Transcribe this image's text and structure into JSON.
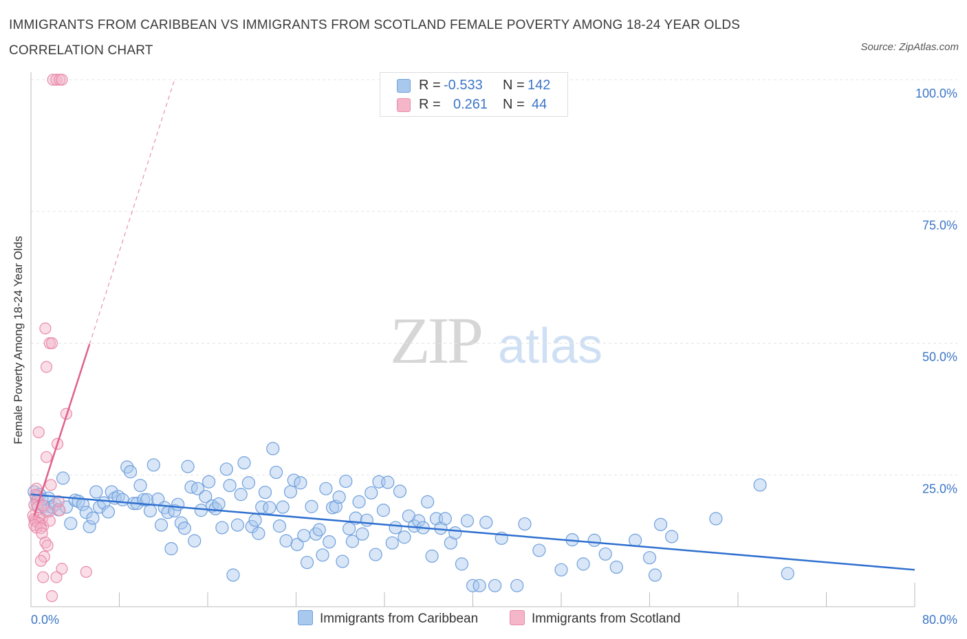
{
  "title": "IMMIGRANTS FROM CARIBBEAN VS IMMIGRANTS FROM SCOTLAND FEMALE POVERTY AMONG 18-24 YEAR OLDS CORRELATION CHART",
  "source": "Source: ZipAtlas.com",
  "watermark": {
    "zip": "ZIP",
    "atlas": "atlas"
  },
  "colors": {
    "blue_fill": "#a9c8ee",
    "blue_stroke": "#6f9fdb",
    "blue_line": "#2e6fcf",
    "pink_fill": "#f5b6c9",
    "pink_stroke": "#e88aa9",
    "pink_line": "#e0608c",
    "axis_text": "#3b75c6"
  },
  "legend": {
    "r_label": "R =",
    "n_label": "N =",
    "rows": [
      {
        "r": "-0.533",
        "n": "142"
      },
      {
        "r": "0.261",
        "n": "44"
      }
    ]
  },
  "chart_data": {
    "type": "scatter",
    "xlabel": "",
    "ylabel": "Female Poverty Among 18-24 Year Olds",
    "xlim": [
      0,
      80
    ],
    "ylim": [
      0,
      100
    ],
    "x_tick_labels": [
      "0.0%",
      "80.0%"
    ],
    "y_tick_values": [
      25,
      50,
      75,
      100
    ],
    "y_tick_labels": [
      "25.0%",
      "50.0%",
      "75.0%",
      "100.0%"
    ],
    "grid": true,
    "legend_position": "top-center",
    "series": [
      {
        "name": "Immigrants from Caribbean",
        "trend": {
          "x": [
            0,
            80
          ],
          "y": [
            21.3,
            7.0
          ]
        },
        "points": [
          [
            0.3,
            21.8
          ],
          [
            0.5,
            20.8
          ],
          [
            0.6,
            19.5
          ],
          [
            0.8,
            21.3
          ],
          [
            1.0,
            20.4
          ],
          [
            1.2,
            19.0
          ],
          [
            1.4,
            18.2
          ],
          [
            1.6,
            20.6
          ],
          [
            1.9,
            18.9
          ],
          [
            2.2,
            19.4
          ],
          [
            2.5,
            18.4
          ],
          [
            2.9,
            24.4
          ],
          [
            3.2,
            18.9
          ],
          [
            3.6,
            15.8
          ],
          [
            4.0,
            20.2
          ],
          [
            4.3,
            20.0
          ],
          [
            4.7,
            19.4
          ],
          [
            5.0,
            17.9
          ],
          [
            5.3,
            15.2
          ],
          [
            5.6,
            16.8
          ],
          [
            5.9,
            21.8
          ],
          [
            6.2,
            18.9
          ],
          [
            6.6,
            19.7
          ],
          [
            7.0,
            18.0
          ],
          [
            7.3,
            21.8
          ],
          [
            7.6,
            20.6
          ],
          [
            7.9,
            20.9
          ],
          [
            8.3,
            20.3
          ],
          [
            8.7,
            26.5
          ],
          [
            9.0,
            25.6
          ],
          [
            9.3,
            19.6
          ],
          [
            9.6,
            19.6
          ],
          [
            9.9,
            23.0
          ],
          [
            10.2,
            20.3
          ],
          [
            10.5,
            20.3
          ],
          [
            10.8,
            18.2
          ],
          [
            11.1,
            26.9
          ],
          [
            11.5,
            20.4
          ],
          [
            11.8,
            15.5
          ],
          [
            12.1,
            18.8
          ],
          [
            12.4,
            17.9
          ],
          [
            12.7,
            11.0
          ],
          [
            13.0,
            18.2
          ],
          [
            13.3,
            19.4
          ],
          [
            13.6,
            15.9
          ],
          [
            13.9,
            14.9
          ],
          [
            14.2,
            26.6
          ],
          [
            14.5,
            22.7
          ],
          [
            14.8,
            12.5
          ],
          [
            15.1,
            22.4
          ],
          [
            15.4,
            18.3
          ],
          [
            15.8,
            20.9
          ],
          [
            16.1,
            23.7
          ],
          [
            16.4,
            19.1
          ],
          [
            16.7,
            18.6
          ],
          [
            17.0,
            19.5
          ],
          [
            17.3,
            15.0
          ],
          [
            17.7,
            26.1
          ],
          [
            18.0,
            23.0
          ],
          [
            18.3,
            6.0
          ],
          [
            18.7,
            15.5
          ],
          [
            19.0,
            21.3
          ],
          [
            19.3,
            27.3
          ],
          [
            19.7,
            23.5
          ],
          [
            20.0,
            15.2
          ],
          [
            20.3,
            16.4
          ],
          [
            20.6,
            13.9
          ],
          [
            20.9,
            18.9
          ],
          [
            21.2,
            21.7
          ],
          [
            21.6,
            18.8
          ],
          [
            21.9,
            30.0
          ],
          [
            22.2,
            25.5
          ],
          [
            22.5,
            15.3
          ],
          [
            22.8,
            18.9
          ],
          [
            23.1,
            12.5
          ],
          [
            23.5,
            21.8
          ],
          [
            23.8,
            24.0
          ],
          [
            24.1,
            11.8
          ],
          [
            24.4,
            23.5
          ],
          [
            24.7,
            13.5
          ],
          [
            25.0,
            8.4
          ],
          [
            25.4,
            19.0
          ],
          [
            25.8,
            13.8
          ],
          [
            26.1,
            14.6
          ],
          [
            26.4,
            9.8
          ],
          [
            26.7,
            22.4
          ],
          [
            27.0,
            12.3
          ],
          [
            27.3,
            18.8
          ],
          [
            27.6,
            19.0
          ],
          [
            27.9,
            20.8
          ],
          [
            28.2,
            8.6
          ],
          [
            28.5,
            23.8
          ],
          [
            28.8,
            14.8
          ],
          [
            29.1,
            12.4
          ],
          [
            29.4,
            16.8
          ],
          [
            29.7,
            19.9
          ],
          [
            30.0,
            13.8
          ],
          [
            30.4,
            16.4
          ],
          [
            30.8,
            21.6
          ],
          [
            31.2,
            9.9
          ],
          [
            31.5,
            23.7
          ],
          [
            31.9,
            18.3
          ],
          [
            32.3,
            23.6
          ],
          [
            32.7,
            12.1
          ],
          [
            33.0,
            15.0
          ],
          [
            33.4,
            21.9
          ],
          [
            33.8,
            13.2
          ],
          [
            34.2,
            17.2
          ],
          [
            34.7,
            15.3
          ],
          [
            35.1,
            16.3
          ],
          [
            35.5,
            15.0
          ],
          [
            35.9,
            19.9
          ],
          [
            36.3,
            9.6
          ],
          [
            36.7,
            16.7
          ],
          [
            37.1,
            14.9
          ],
          [
            37.5,
            16.7
          ],
          [
            38.0,
            12.1
          ],
          [
            38.4,
            14.0
          ],
          [
            39.0,
            8.1
          ],
          [
            39.5,
            16.3
          ],
          [
            40.0,
            4.0
          ],
          [
            40.6,
            4.0
          ],
          [
            41.2,
            16.0
          ],
          [
            42.0,
            4.0
          ],
          [
            42.6,
            13.0
          ],
          [
            44.0,
            4.0
          ],
          [
            44.7,
            15.7
          ],
          [
            46.0,
            10.7
          ],
          [
            48.0,
            7.0
          ],
          [
            49.0,
            12.7
          ],
          [
            50.0,
            8.1
          ],
          [
            51.0,
            12.6
          ],
          [
            52.0,
            10.0
          ],
          [
            53.0,
            7.5
          ],
          [
            54.7,
            12.6
          ],
          [
            56.0,
            9.3
          ],
          [
            56.5,
            6.0
          ],
          [
            57.0,
            15.6
          ],
          [
            58.0,
            13.3
          ],
          [
            62.0,
            16.7
          ],
          [
            66.0,
            23.1
          ],
          [
            68.5,
            6.3
          ]
        ]
      },
      {
        "name": "Immigrants from Scotland",
        "trend": {
          "x": [
            0.3,
            5.3
          ],
          "y": [
            17.3,
            49.8
          ]
        },
        "trend_dashed": {
          "x": [
            5.3,
            13.0
          ],
          "y": [
            49.8,
            100
          ]
        },
        "points": [
          [
            2.0,
            100
          ],
          [
            2.3,
            100
          ],
          [
            2.6,
            100
          ],
          [
            2.8,
            100
          ],
          [
            1.3,
            52.8
          ],
          [
            1.7,
            50.0
          ],
          [
            1.9,
            50.0
          ],
          [
            1.4,
            45.5
          ],
          [
            3.2,
            36.6
          ],
          [
            0.7,
            33.1
          ],
          [
            2.4,
            30.9
          ],
          [
            1.4,
            28.4
          ],
          [
            0.5,
            22.4
          ],
          [
            1.8,
            23.1
          ],
          [
            0.4,
            21.2
          ],
          [
            0.6,
            20.3
          ],
          [
            0.3,
            19.3
          ],
          [
            2.6,
            18.3
          ],
          [
            1.6,
            18.0
          ],
          [
            0.2,
            17.3
          ],
          [
            0.3,
            16.6
          ],
          [
            0.7,
            16.9
          ],
          [
            1.0,
            16.6
          ],
          [
            0.4,
            16.2
          ],
          [
            0.6,
            16.0
          ],
          [
            0.8,
            15.8
          ],
          [
            0.3,
            15.5
          ],
          [
            1.1,
            15.3
          ],
          [
            0.5,
            15.0
          ],
          [
            1.7,
            16.3
          ],
          [
            0.9,
            14.9
          ],
          [
            1.0,
            13.9
          ],
          [
            1.3,
            12.2
          ],
          [
            1.5,
            11.6
          ],
          [
            1.2,
            9.5
          ],
          [
            0.9,
            8.7
          ],
          [
            2.8,
            7.2
          ],
          [
            5.0,
            6.6
          ],
          [
            1.1,
            5.6
          ],
          [
            2.3,
            5.6
          ],
          [
            1.9,
            2.0
          ],
          [
            0.6,
            18.9
          ],
          [
            1.1,
            19.2
          ],
          [
            2.5,
            20.0
          ]
        ]
      }
    ]
  },
  "bottom_legend": [
    "Immigrants from Caribbean",
    "Immigrants from Scotland"
  ]
}
